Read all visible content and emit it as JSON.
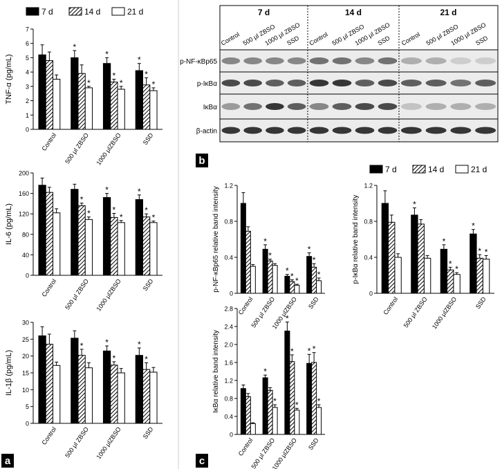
{
  "panels": [
    "a",
    "b",
    "c"
  ],
  "blot": {
    "groups": [
      {
        "label": "7 d",
        "lanes": [
          "Control",
          "500 μl ZBSO",
          "1000 μl ZBSO",
          "SSD"
        ]
      },
      {
        "label": "14 d",
        "lanes": [
          "Control",
          "500 μl ZBSO",
          "1000 μl ZBSO",
          "SSD"
        ]
      },
      {
        "label": "21 d",
        "lanes": [
          "Control",
          "500 μl ZBSO",
          "1000 μl ZBSO",
          "SSD"
        ]
      }
    ],
    "rows": [
      "p-NF-κBp65",
      "p-IκBα",
      "IκBα",
      "β-actin"
    ]
  },
  "chart_data": [
    {
      "type": "bar",
      "ylabel": "TNF-α (pg/mL)",
      "categories": [
        "Control",
        "500 μl ZBSO",
        "1000 μlZBSO",
        "SSD"
      ],
      "ylim": [
        0,
        7
      ],
      "yticks": [
        0,
        1,
        2,
        3,
        4,
        5,
        6,
        7
      ],
      "legend": "top-left",
      "series": [
        {
          "name": "7 d",
          "color": "#000000",
          "values": [
            5.2,
            5.0,
            4.6,
            4.1
          ],
          "errors": [
            0.7,
            0.5,
            0.4,
            0.5
          ],
          "stars": [
            null,
            "*",
            "*",
            "*"
          ]
        },
        {
          "name": "14 d",
          "color": "#ffffff",
          "hatch": true,
          "values": [
            4.8,
            3.9,
            3.3,
            3.1
          ],
          "errors": [
            0.6,
            0.6,
            0.2,
            0.5
          ],
          "stars": [
            null,
            null,
            "*",
            "*"
          ]
        },
        {
          "name": "21 d",
          "color": "#ffffff",
          "values": [
            3.5,
            2.9,
            2.8,
            2.7
          ],
          "errors": [
            0.3,
            0.1,
            0.2,
            0.2
          ],
          "stars": [
            null,
            "*",
            "*",
            "*"
          ]
        }
      ]
    },
    {
      "type": "bar",
      "ylabel": "IL-6 (pg/mL)",
      "categories": [
        "Control",
        "500 μl ZBSO",
        "1000 μlZBSO",
        "SSD"
      ],
      "ylim": [
        0,
        200
      ],
      "yticks": [
        0,
        40,
        80,
        120,
        160,
        200
      ],
      "series": [
        {
          "name": "7 d",
          "color": "#000000",
          "values": [
            176,
            168,
            152,
            148
          ],
          "errors": [
            14,
            10,
            8,
            9
          ],
          "stars": [
            null,
            null,
            "*",
            "*"
          ]
        },
        {
          "name": "14 d",
          "color": "#ffffff",
          "hatch": true,
          "values": [
            162,
            136,
            113,
            114
          ],
          "errors": [
            10,
            5,
            8,
            6
          ],
          "stars": [
            null,
            "*",
            "*",
            "*"
          ]
        },
        {
          "name": "21 d",
          "color": "#ffffff",
          "values": [
            122,
            109,
            103,
            103
          ],
          "errors": [
            8,
            5,
            4,
            3
          ],
          "stars": [
            null,
            "*",
            "*",
            "*"
          ]
        }
      ]
    },
    {
      "type": "bar",
      "ylabel": "IL-1β (pg/mL)",
      "categories": [
        "Control",
        "500 μl ZBSO",
        "1000 μlZBSO",
        "SSD"
      ],
      "ylim": [
        0,
        30
      ],
      "yticks": [
        0,
        5,
        10,
        15,
        20,
        25,
        30
      ],
      "series": [
        {
          "name": "7 d",
          "color": "#000000",
          "values": [
            26,
            25.3,
            21.5,
            20.2
          ],
          "errors": [
            2.7,
            2.2,
            1.5,
            2.2
          ],
          "stars": [
            null,
            null,
            "*",
            "*"
          ]
        },
        {
          "name": "14 d",
          "color": "#ffffff",
          "hatch": true,
          "values": [
            23.5,
            20.2,
            17.3,
            16
          ],
          "errors": [
            3,
            1.8,
            1,
            2
          ],
          "stars": [
            null,
            "*",
            "*",
            "*"
          ]
        },
        {
          "name": "21 d",
          "color": "#ffffff",
          "values": [
            17.2,
            16.5,
            15,
            15.2
          ],
          "errors": [
            1,
            1.5,
            1.3,
            1.4
          ],
          "stars": [
            null,
            null,
            null,
            null
          ]
        }
      ]
    },
    {
      "type": "bar",
      "ylabel": "p-NF-κBp65 relative band intensity",
      "categories": [
        "Control",
        "500 μl ZBSO",
        "1000 μlZBSO",
        "SSD"
      ],
      "ylim": [
        0,
        1.2
      ],
      "yticks": [
        0,
        0.4,
        0.8,
        1.2
      ],
      "legend": "top-right",
      "series": [
        {
          "name": "7 d",
          "color": "#000000",
          "values": [
            1.0,
            0.49,
            0.19,
            0.41
          ],
          "errors": [
            0.12,
            0.05,
            0.02,
            0.04
          ],
          "stars": [
            null,
            "*",
            "*",
            "*"
          ]
        },
        {
          "name": "14 d",
          "color": "#ffffff",
          "hatch": true,
          "values": [
            0.69,
            0.36,
            0.13,
            0.29
          ],
          "errors": [
            0.05,
            0.02,
            0.02,
            0.04
          ],
          "stars": [
            null,
            "*",
            "*",
            "*"
          ]
        },
        {
          "name": "21 d",
          "color": "#ffffff",
          "values": [
            0.3,
            0.31,
            0.09,
            0.14
          ],
          "errors": [
            0.02,
            0.02,
            0.01,
            0.03
          ],
          "stars": [
            null,
            null,
            "*",
            "*"
          ]
        }
      ]
    },
    {
      "type": "bar",
      "ylabel": "p-IκBα relative band intensity",
      "categories": [
        "Control",
        "500 μl ZBSO",
        "1000 μlZBSO",
        "SSD"
      ],
      "ylim": [
        0,
        1.2
      ],
      "yticks": [
        0,
        0.4,
        0.8,
        1.2
      ],
      "series": [
        {
          "name": "7 d",
          "color": "#000000",
          "values": [
            1.0,
            0.87,
            0.49,
            0.66
          ],
          "errors": [
            0.14,
            0.08,
            0.05,
            0.05
          ],
          "stars": [
            null,
            "*",
            "*",
            "*"
          ]
        },
        {
          "name": "14 d",
          "color": "#ffffff",
          "hatch": true,
          "values": [
            0.79,
            0.77,
            0.26,
            0.39
          ],
          "errors": [
            0.08,
            0.05,
            0.03,
            0.04
          ],
          "stars": [
            null,
            null,
            "*",
            "*"
          ]
        },
        {
          "name": "21 d",
          "color": "#ffffff",
          "values": [
            0.4,
            0.39,
            0.21,
            0.38
          ],
          "errors": [
            0.04,
            0.03,
            0.02,
            0.04
          ],
          "stars": [
            null,
            null,
            "*",
            "*"
          ]
        }
      ]
    },
    {
      "type": "bar",
      "ylabel": "IκBα relative band intensity",
      "categories": [
        "Control",
        "500 μl ZBSO",
        "1000 μlZBSO",
        "SSD"
      ],
      "ylim": [
        0,
        2.8
      ],
      "yticks": [
        0,
        0.4,
        0.8,
        1.2,
        1.6,
        {
          "value": 2,
          "label": "2.0"
        },
        2.4,
        2.8
      ],
      "series": [
        {
          "name": "7 d",
          "color": "#000000",
          "values": [
            1.02,
            1.26,
            2.3,
            1.58
          ],
          "errors": [
            0.08,
            0.06,
            0.2,
            0.2
          ],
          "stars": [
            null,
            "*",
            "*",
            "*"
          ]
        },
        {
          "name": "14 d",
          "color": "#ffffff",
          "hatch": true,
          "values": [
            0.84,
            0.98,
            1.62,
            1.6
          ],
          "errors": [
            0.07,
            0.06,
            0.15,
            0.22
          ],
          "stars": [
            null,
            null,
            "*",
            "*"
          ]
        },
        {
          "name": "21 d",
          "color": "#ffffff",
          "values": [
            0.24,
            0.6,
            0.54,
            0.6
          ],
          "errors": [
            0.02,
            0.06,
            0.04,
            0.06
          ],
          "stars": [
            null,
            "*",
            "*",
            "*"
          ]
        }
      ]
    }
  ]
}
